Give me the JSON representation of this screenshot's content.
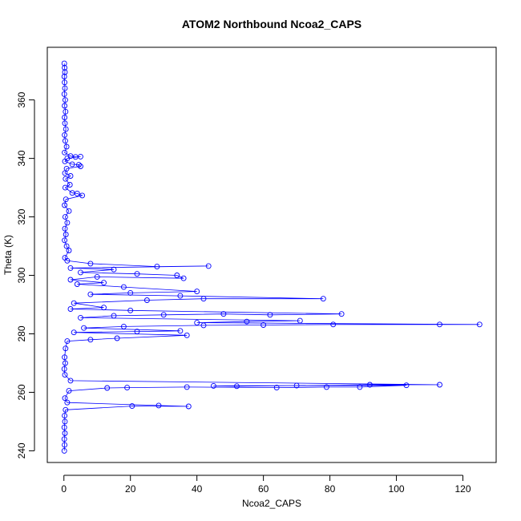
{
  "chart_data": {
    "type": "line",
    "title": "ATOM2 Northbound Ncoa2_CAPS",
    "xlabel": "Ncoa2_CAPS",
    "ylabel": "Theta (K)",
    "xlim": [
      -5,
      130
    ],
    "ylim": [
      236,
      378
    ],
    "xticks": [
      0,
      20,
      40,
      60,
      80,
      100,
      120
    ],
    "yticks": [
      240,
      260,
      280,
      300,
      320,
      340,
      360
    ],
    "grid": false,
    "legend": "none",
    "colors": {
      "series": "#0000ff",
      "axes": "#000000",
      "background": "#ffffff"
    },
    "series": [
      {
        "points": [
          [
            0.1,
            372.5
          ],
          [
            0.2,
            371
          ],
          [
            0.3,
            369.5
          ],
          [
            0.1,
            368
          ],
          [
            0.2,
            366
          ],
          [
            0.3,
            364
          ],
          [
            0.1,
            362
          ],
          [
            0.4,
            360
          ],
          [
            0.2,
            358
          ],
          [
            0.5,
            356
          ],
          [
            0.2,
            354
          ],
          [
            0.3,
            352
          ],
          [
            0.6,
            350
          ],
          [
            0.2,
            348
          ],
          [
            0.4,
            346
          ],
          [
            0.8,
            344
          ],
          [
            0.2,
            342
          ],
          [
            2.0,
            340.8
          ],
          [
            3.5,
            340.5
          ],
          [
            5.0,
            340.6
          ],
          [
            1.0,
            340
          ],
          [
            0.3,
            339
          ],
          [
            2.5,
            338
          ],
          [
            4.5,
            337.8
          ],
          [
            5.0,
            337.3
          ],
          [
            0.8,
            336.5
          ],
          [
            0.3,
            335
          ],
          [
            2.0,
            334
          ],
          [
            0.5,
            333
          ],
          [
            1.8,
            331
          ],
          [
            0.4,
            330
          ],
          [
            2.5,
            328.2
          ],
          [
            4.0,
            328
          ],
          [
            5.5,
            327.3
          ],
          [
            0.6,
            326
          ],
          [
            0.2,
            324
          ],
          [
            1.5,
            322
          ],
          [
            0.4,
            320
          ],
          [
            1.0,
            318
          ],
          [
            0.3,
            316
          ],
          [
            0.6,
            314
          ],
          [
            0.2,
            312
          ],
          [
            0.8,
            310
          ],
          [
            1.5,
            308.5
          ],
          [
            0.3,
            306
          ],
          [
            1.0,
            305
          ],
          [
            8.0,
            304
          ],
          [
            28.0,
            303
          ],
          [
            43.5,
            303.2
          ],
          [
            2.0,
            302.5
          ],
          [
            15.0,
            302
          ],
          [
            5.0,
            301
          ],
          [
            22.0,
            300.5
          ],
          [
            34.0,
            300
          ],
          [
            36.0,
            299
          ],
          [
            10.0,
            299.5
          ],
          [
            2.0,
            298.5
          ],
          [
            12.0,
            297.5
          ],
          [
            4.0,
            297
          ],
          [
            18.0,
            296
          ],
          [
            40.0,
            294.5
          ],
          [
            20.0,
            294
          ],
          [
            8.0,
            293.5
          ],
          [
            35.0,
            293
          ],
          [
            78.0,
            292
          ],
          [
            42.0,
            292
          ],
          [
            25.0,
            291.5
          ],
          [
            3.0,
            290.5
          ],
          [
            12.0,
            289
          ],
          [
            2.0,
            288.5
          ],
          [
            20.0,
            288
          ],
          [
            83.5,
            286.8
          ],
          [
            62.0,
            286.5
          ],
          [
            48.0,
            286.8
          ],
          [
            30.0,
            286.5
          ],
          [
            15.0,
            286.2
          ],
          [
            5.0,
            285.5
          ],
          [
            71.0,
            284.5
          ],
          [
            55.0,
            284.2
          ],
          [
            40.0,
            283.8
          ],
          [
            125.0,
            283.2
          ],
          [
            113.0,
            283.2
          ],
          [
            81.0,
            283.2
          ],
          [
            60.0,
            283
          ],
          [
            42.0,
            282.9
          ],
          [
            18.0,
            282.5
          ],
          [
            6.0,
            282
          ],
          [
            35.0,
            281
          ],
          [
            22.0,
            280.8
          ],
          [
            3.0,
            280.5
          ],
          [
            37.0,
            279.5
          ],
          [
            16.0,
            278.5
          ],
          [
            8.0,
            278
          ],
          [
            1.0,
            277.5
          ],
          [
            0.5,
            275
          ],
          [
            0.2,
            272
          ],
          [
            0.4,
            270
          ],
          [
            0.1,
            268
          ],
          [
            0.3,
            266
          ],
          [
            2.0,
            264
          ],
          [
            113.0,
            262.6
          ],
          [
            92.0,
            262.6
          ],
          [
            70.0,
            262.3
          ],
          [
            52.0,
            262.1
          ],
          [
            45.0,
            262.2
          ],
          [
            103.0,
            262.4
          ],
          [
            89.0,
            261.8
          ],
          [
            79.0,
            261.8
          ],
          [
            64.0,
            261.6
          ],
          [
            37.0,
            261.8
          ],
          [
            19.0,
            261.6
          ],
          [
            13.0,
            261.5
          ],
          [
            1.5,
            260.5
          ],
          [
            0.3,
            258
          ],
          [
            1.0,
            256.5
          ],
          [
            28.5,
            255.5
          ],
          [
            37.5,
            255.2
          ],
          [
            20.5,
            255.3
          ],
          [
            0.5,
            254
          ],
          [
            0.2,
            252
          ],
          [
            0.3,
            250
          ],
          [
            0.1,
            248
          ],
          [
            0.3,
            246
          ],
          [
            0.1,
            244
          ],
          [
            0.2,
            242
          ],
          [
            0.1,
            240
          ]
        ]
      }
    ]
  }
}
